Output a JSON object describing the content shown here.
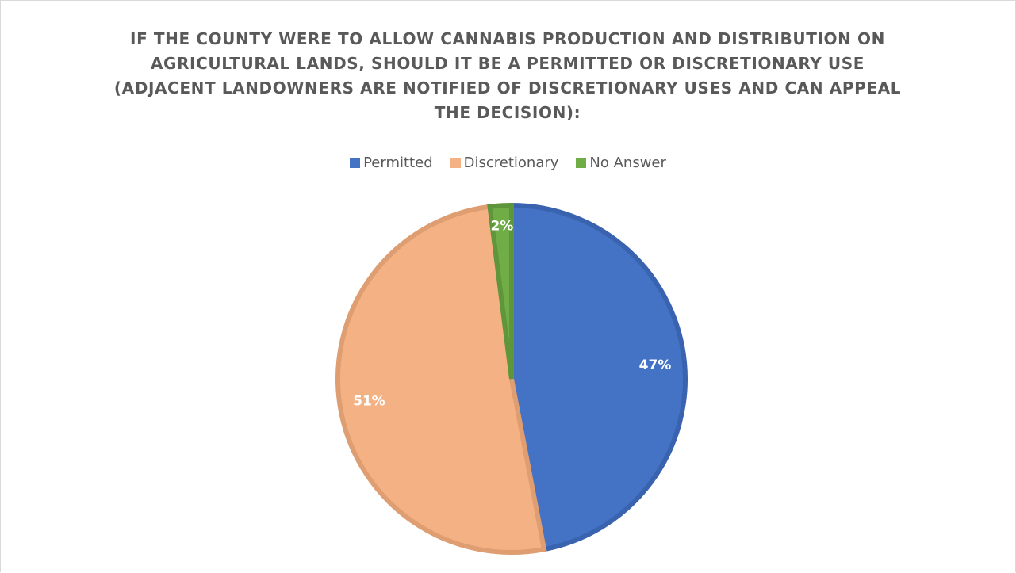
{
  "chart_data": {
    "type": "pie",
    "title": "If the county were to allow cannabis production and distribution on agricultural lands, should it be a permitted or discretionary use (adjacent landowners are notified of discretionary uses and can appeal the decision):",
    "slices": [
      {
        "name": "Permitted",
        "value": 47,
        "label": "47%",
        "color": "#4472C4",
        "edge": "#3A63AF"
      },
      {
        "name": "Discretionary",
        "value": 51,
        "label": "51%",
        "color": "#F4B183",
        "edge": "#DE9E72"
      },
      {
        "name": "No Answer",
        "value": 2,
        "label": "2%",
        "color": "#70AD47",
        "edge": "#5F963B"
      }
    ],
    "legend_position": "top",
    "start_angle_deg": 0,
    "direction": "clockwise"
  }
}
